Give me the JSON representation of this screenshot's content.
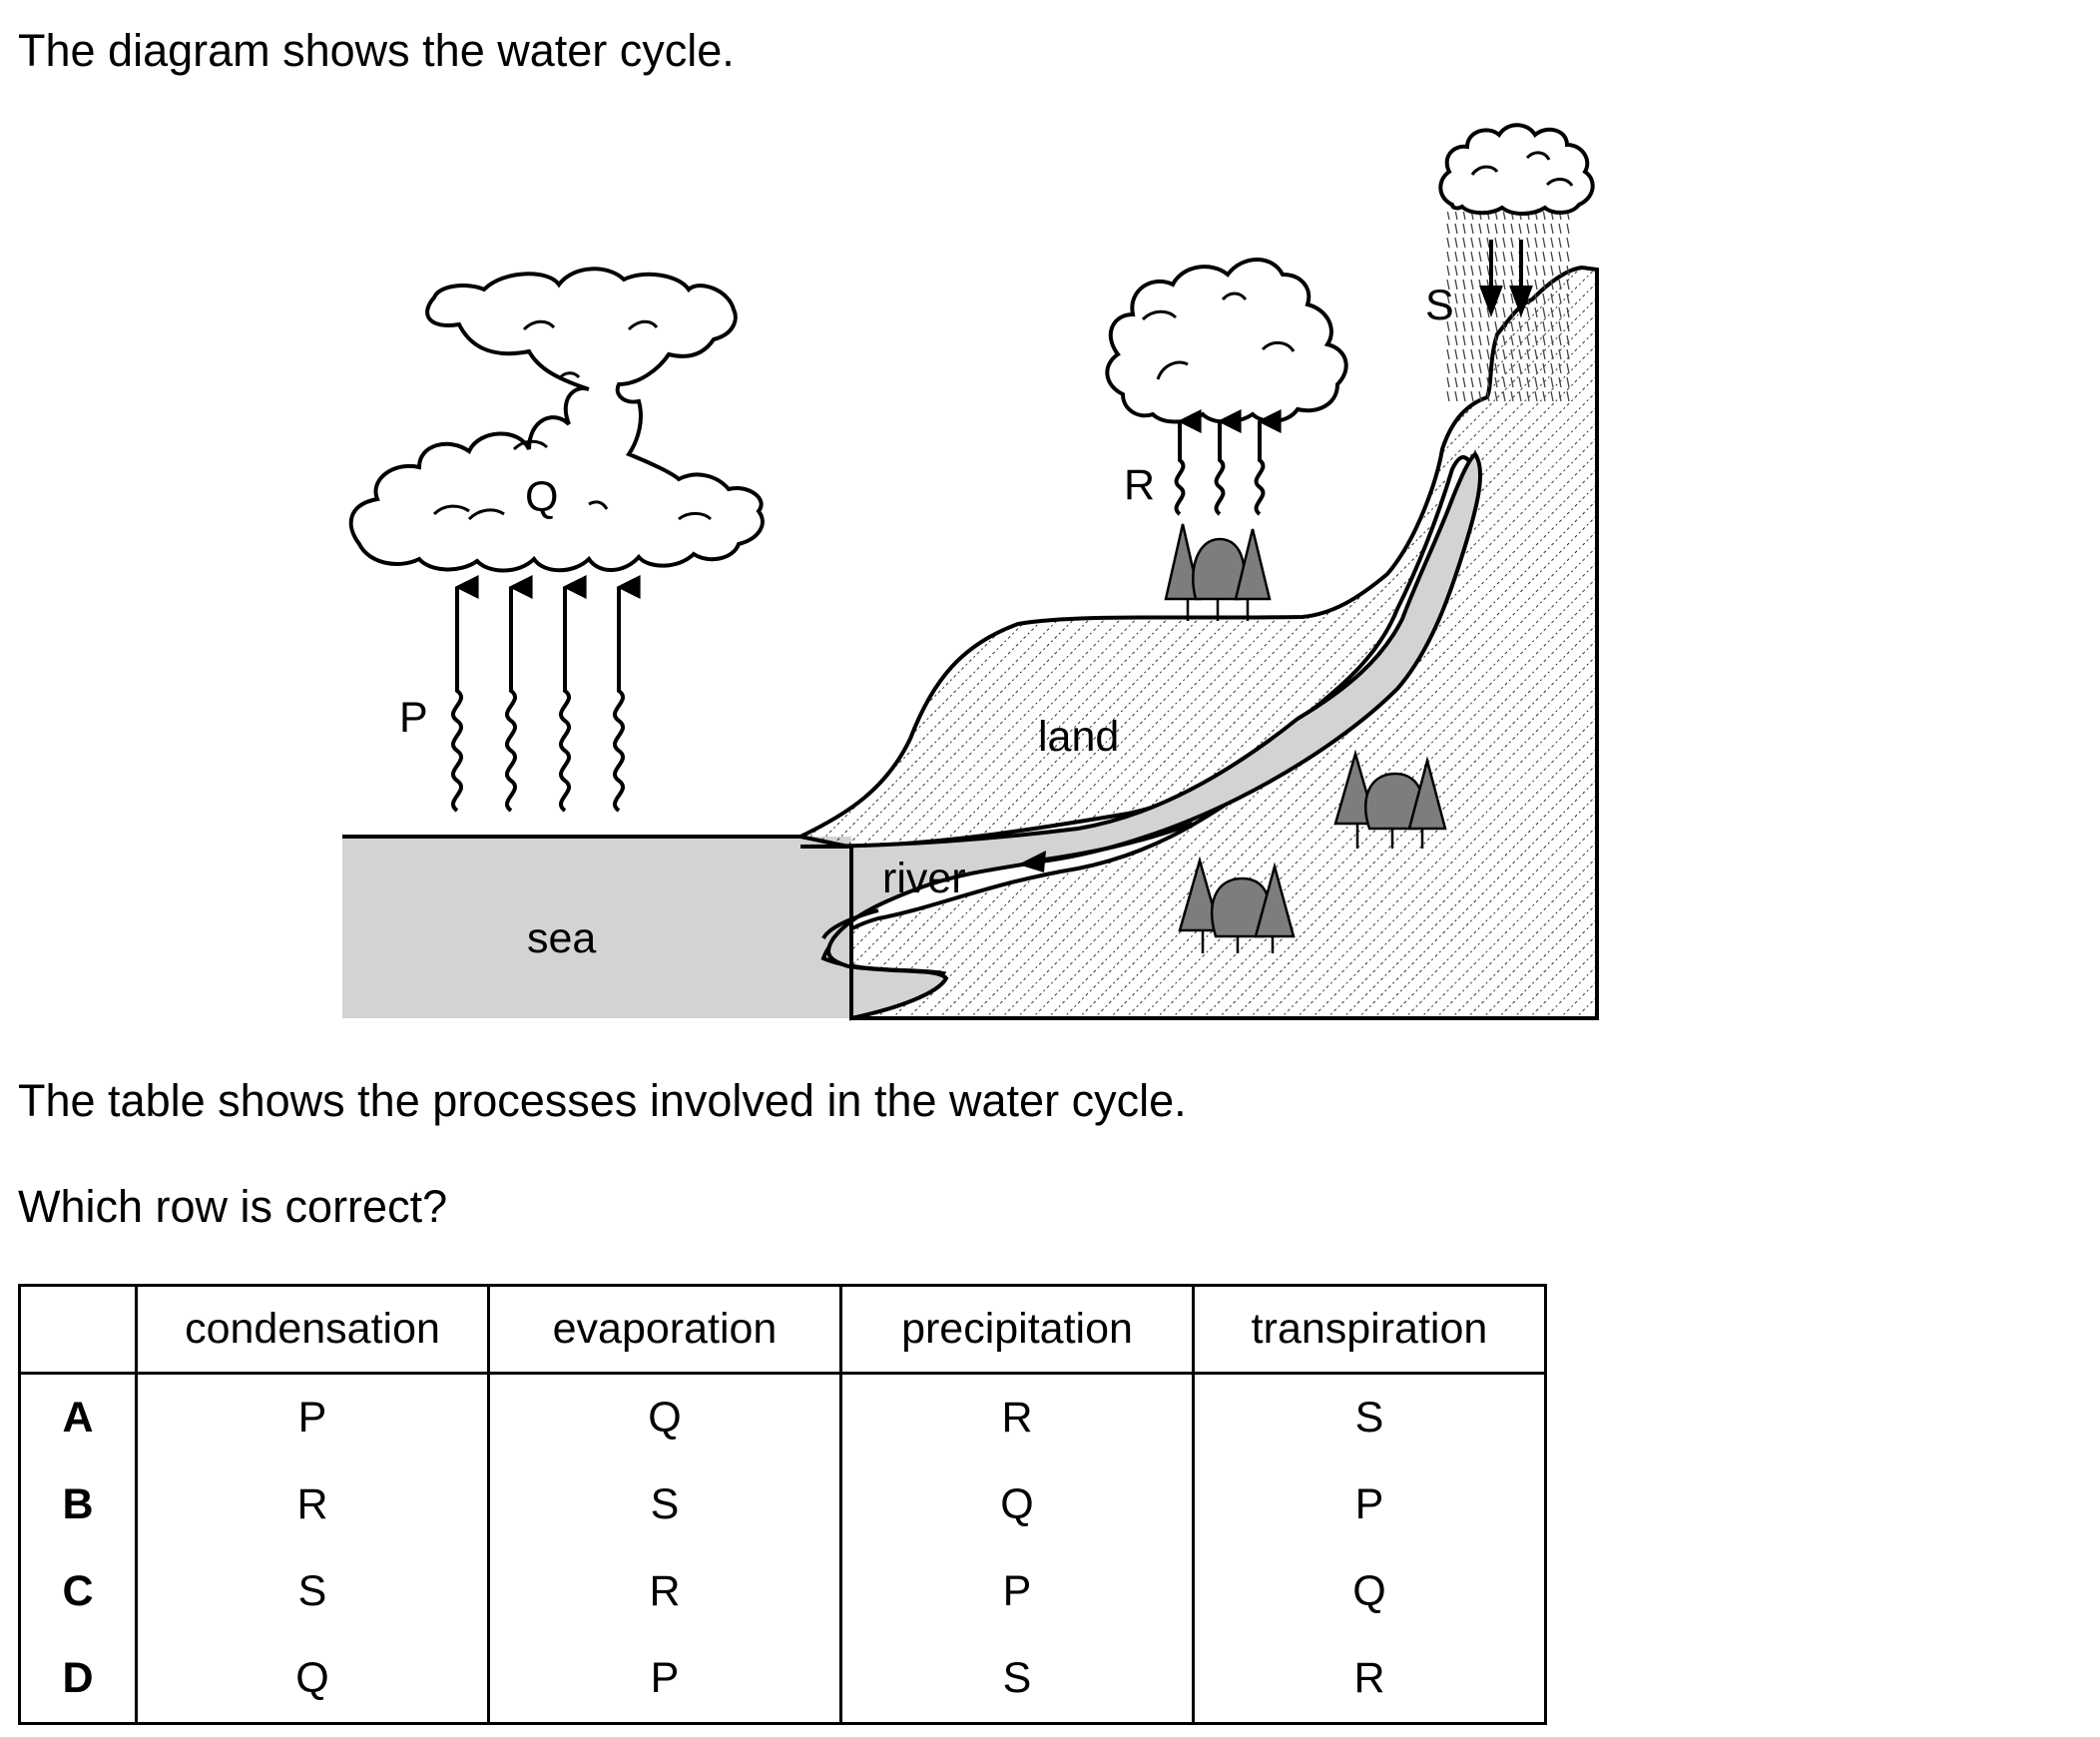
{
  "question": {
    "intro": "The diagram shows the water cycle.",
    "table_intro": "The table shows the processes involved in the water cycle.",
    "prompt": "Which row is correct?"
  },
  "diagram": {
    "labels": {
      "p": "P",
      "q": "Q",
      "r": "R",
      "s": "S",
      "land": "land",
      "river": "river",
      "sea": "sea"
    },
    "colors": {
      "sea": "#d2d3d5",
      "tree": "#7d7d7d",
      "ink": "#000000"
    }
  },
  "table": {
    "headers": [
      "",
      "condensation",
      "evaporation",
      "precipitation",
      "transpiration"
    ],
    "rows": [
      {
        "key": "A",
        "cells": [
          "P",
          "Q",
          "R",
          "S"
        ]
      },
      {
        "key": "B",
        "cells": [
          "R",
          "S",
          "Q",
          "P"
        ]
      },
      {
        "key": "C",
        "cells": [
          "S",
          "R",
          "P",
          "Q"
        ]
      },
      {
        "key": "D",
        "cells": [
          "Q",
          "P",
          "S",
          "R"
        ]
      }
    ]
  }
}
